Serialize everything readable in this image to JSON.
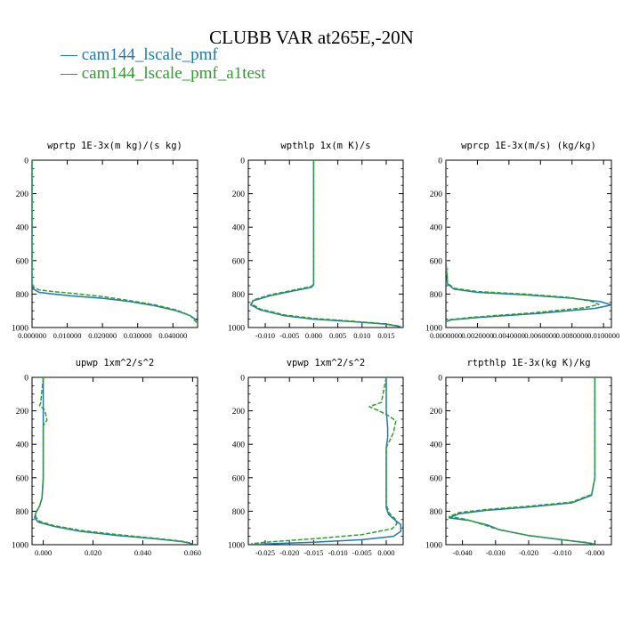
{
  "title": "CLUBB VAR at265E,-20N",
  "legend": [
    {
      "label": "— cam144_lscale_pmf",
      "color": "#1f77b4"
    },
    {
      "label": "— cam144_lscale_pmf_a1test",
      "color": "#2ca02c"
    }
  ],
  "chart_data": [
    {
      "type": "line",
      "title": "wprtp  1E-3x(m kg)/(s kg)",
      "xlim": [
        0.0,
        0.047
      ],
      "ylim": [
        1000,
        0
      ],
      "xticks": [
        "0.000000",
        "0.010000",
        "0.020000",
        "0.030000",
        "0.040000"
      ],
      "xtickvals": [
        0.0,
        0.01,
        0.02,
        0.03,
        0.04
      ],
      "yticks": [
        "0",
        "200",
        "400",
        "600",
        "800",
        "1000"
      ],
      "series": [
        {
          "color": "#1f77b4",
          "dash": false,
          "x": [
            0.0,
            0.0,
            0.0,
            0.0,
            0.0,
            0.0004,
            0.002,
            0.006,
            0.012,
            0.02,
            0.028,
            0.035,
            0.041,
            0.045,
            0.047,
            0.047
          ],
          "y": [
            0,
            200,
            400,
            600,
            740,
            770,
            790,
            800,
            812,
            825,
            845,
            870,
            900,
            930,
            960,
            985
          ]
        },
        {
          "color": "#2ca02c",
          "dash": true,
          "x": [
            0.0,
            0.0,
            0.0,
            0.0,
            0.0,
            0.0004,
            0.002,
            0.006,
            0.012,
            0.02,
            0.028,
            0.035,
            0.041,
            0.045,
            0.046,
            0.047
          ],
          "y": [
            0,
            200,
            400,
            600,
            735,
            760,
            775,
            785,
            797,
            815,
            840,
            865,
            895,
            930,
            955,
            975
          ]
        }
      ]
    },
    {
      "type": "line",
      "title": "wpthlp  1x(m K)/s",
      "xlim": [
        -0.0135,
        0.0185
      ],
      "ylim": [
        1000,
        0
      ],
      "xticks": [
        "-0.010",
        "-0.005",
        "0.000",
        "0.005",
        "0.010",
        "0.015"
      ],
      "xtickvals": [
        -0.01,
        -0.005,
        0.0,
        0.005,
        0.01,
        0.015
      ],
      "yticks": [
        "0",
        "200",
        "400",
        "600",
        "800",
        "1000"
      ],
      "series": [
        {
          "color": "#1f77b4",
          "dash": false,
          "x": [
            0.0,
            0.0,
            0.0,
            0.0,
            0.0,
            -0.0005,
            -0.004,
            -0.009,
            -0.0125,
            -0.013,
            -0.011,
            -0.006,
            0.0,
            0.008,
            0.015,
            0.018
          ],
          "y": [
            0,
            200,
            400,
            600,
            745,
            760,
            780,
            810,
            840,
            865,
            895,
            930,
            950,
            965,
            980,
            995
          ]
        },
        {
          "color": "#2ca02c",
          "dash": true,
          "x": [
            0.0,
            0.0,
            0.0,
            0.0,
            0.0,
            -0.0005,
            -0.004,
            -0.009,
            -0.0125,
            -0.0128,
            -0.011,
            -0.006,
            0.0,
            0.008,
            0.015,
            0.018
          ],
          "y": [
            0,
            200,
            400,
            600,
            740,
            755,
            775,
            805,
            835,
            860,
            890,
            925,
            945,
            962,
            978,
            993
          ]
        }
      ]
    },
    {
      "type": "line",
      "title": "wprcp  1E-3x(m/s) (kg/kg)",
      "xlim": [
        0.0,
        0.0105
      ],
      "ylim": [
        1000,
        0
      ],
      "xticks": [
        "0.0000000",
        "0.0020000",
        "0.0040000",
        "0.0060000",
        "0.0080000",
        "0.0100000"
      ],
      "xtickvals": [
        0.0,
        0.002,
        0.004,
        0.006,
        0.008,
        0.01
      ],
      "yticks": [
        "0",
        "200",
        "400",
        "600",
        "800",
        "1000"
      ],
      "series": [
        {
          "color": "#1f77b4",
          "dash": false,
          "x": [
            0.0,
            0.0,
            0.0,
            0.0,
            0.0001,
            0.0005,
            0.002,
            0.005,
            0.008,
            0.0098,
            0.0105,
            0.0095,
            0.006,
            0.002,
            0.0003,
            0.0
          ],
          "y": [
            0,
            200,
            400,
            600,
            740,
            770,
            790,
            805,
            825,
            845,
            865,
            885,
            915,
            940,
            955,
            965
          ]
        },
        {
          "color": "#2ca02c",
          "dash": true,
          "x": [
            0.0,
            0.0,
            0.0,
            0.0,
            0.0001,
            0.0005,
            0.002,
            0.005,
            0.0078,
            0.0092,
            0.0097,
            0.0088,
            0.0055,
            0.0018,
            0.0003,
            0.0
          ],
          "y": [
            0,
            200,
            400,
            600,
            735,
            765,
            785,
            800,
            820,
            842,
            862,
            882,
            912,
            938,
            952,
            962
          ]
        }
      ]
    },
    {
      "type": "line",
      "title": "upwp  1xm^2/s^2",
      "xlim": [
        -0.0045,
        0.062
      ],
      "ylim": [
        1000,
        0
      ],
      "xticks": [
        "0.000",
        "0.020",
        "0.040",
        "0.060"
      ],
      "xtickvals": [
        0.0,
        0.02,
        0.04,
        0.06
      ],
      "yticks": [
        "0",
        "200",
        "400",
        "600",
        "800",
        "1000"
      ],
      "series": [
        {
          "color": "#1f77b4",
          "dash": false,
          "x": [
            0.0,
            0.0,
            0.0,
            0.0,
            -0.0005,
            -0.0015,
            -0.003,
            -0.0035,
            -0.002,
            0.004,
            0.015,
            0.03,
            0.045,
            0.056,
            0.06
          ],
          "y": [
            0,
            200,
            400,
            600,
            720,
            770,
            810,
            840,
            865,
            890,
            920,
            945,
            965,
            982,
            995
          ]
        },
        {
          "color": "#2ca02c",
          "dash": true,
          "x": [
            0.0,
            -0.001,
            -0.0015,
            0.0003,
            0.001,
            0.0015,
            0.0,
            0.0,
            0.0,
            -0.0005,
            -0.0015,
            -0.003,
            -0.003,
            -0.0015,
            0.004,
            0.015,
            0.03,
            0.045,
            0.056,
            0.06
          ],
          "y": [
            0,
            150,
            170,
            190,
            220,
            255,
            290,
            400,
            600,
            720,
            770,
            810,
            835,
            860,
            885,
            915,
            940,
            962,
            980,
            993
          ]
        }
      ]
    },
    {
      "type": "line",
      "title": "vpwp  1xm^2/s^2",
      "xlim": [
        -0.0285,
        0.0035
      ],
      "ylim": [
        1000,
        0
      ],
      "xticks": [
        "-0.025",
        "-0.020",
        "-0.015",
        "-0.010",
        "-0.005",
        "0.000"
      ],
      "xtickvals": [
        -0.025,
        -0.02,
        -0.015,
        -0.01,
        -0.005,
        0.0
      ],
      "yticks": [
        "0",
        "200",
        "400",
        "600",
        "800",
        "1000"
      ],
      "series": [
        {
          "color": "#1f77b4",
          "dash": false,
          "x": [
            0.0,
            0.0,
            0.0003,
            0.0003,
            0.0,
            0.0,
            0.0,
            0.0005,
            0.0017,
            0.003,
            0.003,
            0.0015,
            -0.005,
            -0.015,
            -0.025,
            -0.028
          ],
          "y": [
            0,
            200,
            300,
            360,
            420,
            600,
            780,
            820,
            850,
            880,
            920,
            950,
            970,
            985,
            995,
            1000
          ]
        },
        {
          "color": "#2ca02c",
          "dash": true,
          "x": [
            0.0,
            -0.001,
            -0.0035,
            -0.0015,
            0.0005,
            0.002,
            0.0015,
            0.0,
            0.0,
            0.0,
            0.0006,
            0.0018,
            0.0022,
            0.0012,
            -0.005,
            -0.015,
            -0.025,
            -0.028
          ],
          "y": [
            0,
            150,
            175,
            200,
            230,
            260,
            330,
            420,
            600,
            760,
            810,
            845,
            875,
            905,
            940,
            965,
            985,
            995
          ]
        }
      ]
    },
    {
      "type": "line",
      "title": "rtpthlp  1E-3x(kg K)/kg",
      "xlim": [
        -0.045,
        0.005
      ],
      "ylim": [
        1000,
        0
      ],
      "xticks": [
        "-0.040",
        "-0.030",
        "-0.020",
        "-0.010",
        "-0.000"
      ],
      "xtickvals": [
        -0.04,
        -0.03,
        -0.02,
        -0.01,
        0.0
      ],
      "yticks": [
        "0",
        "200",
        "400",
        "600",
        "800",
        "1000"
      ],
      "series": [
        {
          "color": "#1f77b4",
          "dash": false,
          "x": [
            0.0,
            0.0,
            0.0,
            0.0,
            -0.001,
            -0.007,
            -0.02,
            -0.033,
            -0.041,
            -0.044,
            -0.038,
            -0.032,
            -0.029,
            -0.02,
            -0.01,
            -0.002,
            0.0
          ],
          "y": [
            0,
            200,
            400,
            600,
            705,
            750,
            775,
            795,
            815,
            840,
            855,
            885,
            910,
            945,
            970,
            990,
            998
          ]
        },
        {
          "color": "#2ca02c",
          "dash": true,
          "x": [
            0.0,
            0.0,
            0.0,
            0.0,
            -0.001,
            -0.007,
            -0.02,
            -0.033,
            -0.041,
            -0.044,
            -0.039,
            -0.034,
            -0.03,
            -0.021,
            -0.011,
            -0.002,
            0.0
          ],
          "y": [
            0,
            200,
            400,
            600,
            700,
            745,
            770,
            790,
            808,
            832,
            848,
            878,
            905,
            942,
            968,
            988,
            997
          ]
        }
      ]
    }
  ]
}
